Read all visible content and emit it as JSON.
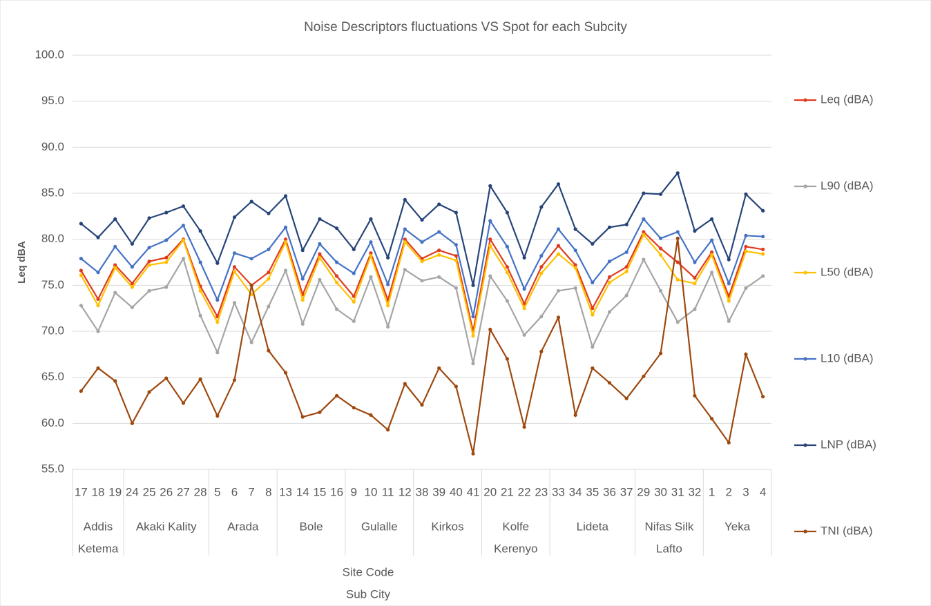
{
  "chart_data": {
    "type": "line",
    "title": "Noise Descriptors fluctuations VS Spot for each Subcity",
    "y_label": "Leq dBA",
    "x_label": [
      "Site Code",
      "Sub City"
    ],
    "groups": [
      {
        "name": [
          "Addis",
          "Ketema"
        ],
        "codes": [
          "17",
          "18",
          "19"
        ]
      },
      {
        "name": [
          "Akaki Kality"
        ],
        "codes": [
          "24",
          "25",
          "26",
          "27",
          "28"
        ]
      },
      {
        "name": [
          "Arada"
        ],
        "codes": [
          "5",
          "6",
          "7",
          "8"
        ]
      },
      {
        "name": [
          "Bole"
        ],
        "codes": [
          "13",
          "14",
          "15",
          "16"
        ]
      },
      {
        "name": [
          "Gulalle"
        ],
        "codes": [
          "9",
          "10",
          "11",
          "12"
        ]
      },
      {
        "name": [
          "Kirkos"
        ],
        "codes": [
          "38",
          "39",
          "40",
          "41"
        ]
      },
      {
        "name": [
          "Kolfe",
          "Kerenyo"
        ],
        "codes": [
          "20",
          "21",
          "22",
          "23"
        ]
      },
      {
        "name": [
          "Lideta"
        ],
        "codes": [
          "33",
          "34",
          "35",
          "36",
          "37"
        ]
      },
      {
        "name": [
          "Nifas Silk",
          "Lafto"
        ],
        "codes": [
          "29",
          "30",
          "31",
          "32"
        ]
      },
      {
        "name": [
          "Yeka"
        ],
        "codes": [
          "1",
          "2",
          "3",
          "4"
        ]
      }
    ],
    "ylim": [
      55,
      100
    ],
    "yticks": [
      {
        "value": 55,
        "label": "55.0"
      },
      {
        "value": 60,
        "label": "60.0"
      },
      {
        "value": 65,
        "label": "65.0"
      },
      {
        "value": 70,
        "label": "70.0"
      },
      {
        "value": 75,
        "label": "75.0"
      },
      {
        "value": 80,
        "label": "80.0"
      },
      {
        "value": 85,
        "label": "85.0"
      },
      {
        "value": 90,
        "label": "90.0"
      },
      {
        "value": 95,
        "label": "95.0"
      },
      {
        "value": 100,
        "label": "100.0"
      }
    ],
    "grid": true,
    "legend": "right",
    "series": [
      {
        "name": "Leq (dBA)",
        "color": "#e03b1f",
        "values": [
          76.6,
          73.5,
          77.2,
          75.2,
          77.6,
          78.0,
          80.0,
          74.9,
          71.6,
          77.0,
          75.0,
          76.4,
          80.0,
          74.0,
          78.4,
          76.0,
          73.8,
          78.5,
          73.4,
          80.0,
          77.9,
          78.8,
          78.2,
          70.0,
          80.0,
          77.0,
          73.0,
          77.0,
          79.3,
          77.2,
          72.5,
          75.9,
          77.0,
          80.8,
          79.0,
          77.5,
          75.8,
          78.6,
          73.8,
          79.2,
          78.9
        ]
      },
      {
        "name": "L90 (dBA)",
        "color": "#a5a5a5",
        "values": [
          72.8,
          70.0,
          74.2,
          72.6,
          74.4,
          74.8,
          77.9,
          71.7,
          67.7,
          73.1,
          68.8,
          72.7,
          76.6,
          70.8,
          75.6,
          72.4,
          71.1,
          75.9,
          70.5,
          76.7,
          75.5,
          75.9,
          74.7,
          66.5,
          76.0,
          73.3,
          69.6,
          71.6,
          74.4,
          74.7,
          68.3,
          72.1,
          73.9,
          77.8,
          74.4,
          71.0,
          72.4,
          76.4,
          71.1,
          74.7,
          76.0
        ]
      },
      {
        "name": "L50 (dBA)",
        "color": "#ffc000",
        "values": [
          76.1,
          72.8,
          76.9,
          74.8,
          77.2,
          77.5,
          79.9,
          74.4,
          71.0,
          76.5,
          74.0,
          75.7,
          79.7,
          73.4,
          78.0,
          75.3,
          73.2,
          78.2,
          72.8,
          79.7,
          77.6,
          78.3,
          77.7,
          69.5,
          79.3,
          76.4,
          72.5,
          76.3,
          78.4,
          76.9,
          71.8,
          75.3,
          76.5,
          80.5,
          78.3,
          75.6,
          75.2,
          78.3,
          73.3,
          78.7,
          78.4
        ]
      },
      {
        "name": "L10 (dBA)",
        "color": "#4472c4",
        "values": [
          77.9,
          76.4,
          79.2,
          77.0,
          79.1,
          79.9,
          81.5,
          77.5,
          73.4,
          78.5,
          77.9,
          78.9,
          81.3,
          75.7,
          79.5,
          77.5,
          76.3,
          79.7,
          75.1,
          81.1,
          79.7,
          80.8,
          79.4,
          71.6,
          82.0,
          79.2,
          74.6,
          78.2,
          81.1,
          78.8,
          75.3,
          77.6,
          78.6,
          82.2,
          80.1,
          80.8,
          77.5,
          79.9,
          75.2,
          80.4,
          80.3
        ]
      },
      {
        "name": "LNP (dBA)",
        "color": "#264478",
        "values": [
          81.7,
          80.2,
          82.2,
          79.5,
          82.3,
          82.9,
          83.6,
          80.9,
          77.4,
          82.4,
          84.1,
          82.8,
          84.7,
          78.8,
          82.2,
          81.2,
          78.9,
          82.2,
          78.0,
          84.3,
          82.1,
          83.8,
          82.9,
          75.0,
          85.8,
          82.9,
          78.0,
          83.5,
          86.0,
          81.1,
          79.5,
          81.3,
          81.6,
          85.0,
          84.9,
          87.2,
          80.9,
          82.2,
          77.8,
          84.9,
          83.1
        ]
      },
      {
        "name": "TNI (dBA)",
        "color": "#9e480e",
        "values": [
          63.5,
          66.0,
          64.6,
          60.0,
          63.4,
          64.9,
          62.2,
          64.8,
          60.8,
          64.7,
          75.0,
          67.9,
          65.5,
          60.7,
          61.2,
          63.0,
          61.7,
          60.9,
          59.3,
          64.3,
          62.0,
          66.0,
          64.0,
          56.7,
          70.2,
          67.0,
          59.6,
          67.8,
          71.5,
          60.9,
          66.0,
          64.4,
          62.7,
          65.1,
          67.6,
          80.1,
          63.0,
          60.5,
          57.9,
          67.5,
          62.9
        ]
      }
    ]
  }
}
